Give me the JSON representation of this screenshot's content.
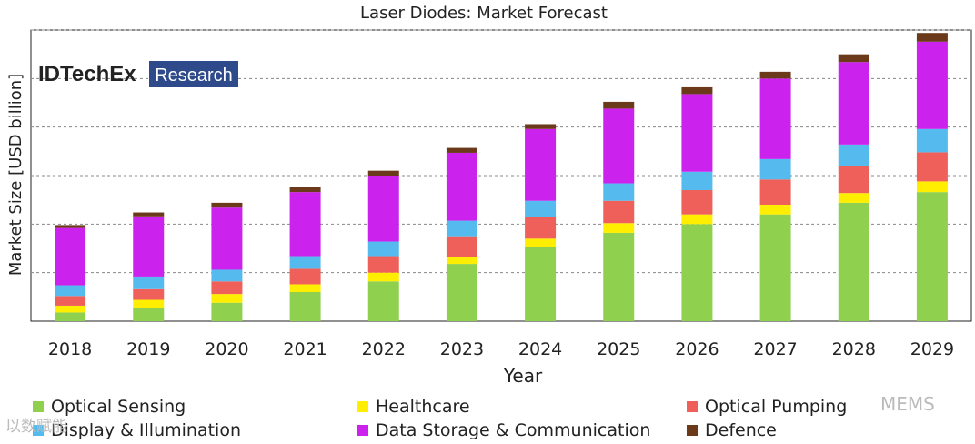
{
  "chart_data": {
    "type": "bar",
    "stacked": true,
    "title": "Laser Diodes: Market Forecast",
    "xlabel": "Year",
    "ylabel": "Market Size [USD billion]",
    "ylim": [
      0,
      6
    ],
    "ytick_count": 6,
    "grid": true,
    "legend_position": "bottom",
    "categories": [
      "2018",
      "2019",
      "2020",
      "2021",
      "2022",
      "2023",
      "2024",
      "2025",
      "2026",
      "2027",
      "2028",
      "2029"
    ],
    "series": [
      {
        "name": "Optical Sensing",
        "color": "#8fd14f",
        "values": [
          0.18,
          0.28,
          0.38,
          0.6,
          0.82,
          1.18,
          1.52,
          1.82,
          2.0,
          2.2,
          2.44,
          2.66
        ]
      },
      {
        "name": "Healthcare",
        "color": "#ffee00",
        "values": [
          0.14,
          0.16,
          0.18,
          0.16,
          0.18,
          0.15,
          0.18,
          0.2,
          0.2,
          0.2,
          0.2,
          0.22
        ]
      },
      {
        "name": "Optical Pumping",
        "color": "#f0605a",
        "values": [
          0.2,
          0.22,
          0.26,
          0.32,
          0.34,
          0.42,
          0.44,
          0.46,
          0.5,
          0.52,
          0.56,
          0.6
        ]
      },
      {
        "name": "Display & Illumination",
        "color": "#55bbee",
        "values": [
          0.22,
          0.26,
          0.24,
          0.26,
          0.3,
          0.32,
          0.34,
          0.36,
          0.38,
          0.42,
          0.44,
          0.48
        ]
      },
      {
        "name": "Data Storage & Communication",
        "color": "#cc22ee",
        "values": [
          1.18,
          1.24,
          1.28,
          1.32,
          1.36,
          1.4,
          1.48,
          1.54,
          1.6,
          1.66,
          1.7,
          1.8
        ]
      },
      {
        "name": "Defence",
        "color": "#6b3a1a",
        "values": [
          0.06,
          0.08,
          0.1,
          0.1,
          0.1,
          0.1,
          0.1,
          0.14,
          0.14,
          0.14,
          0.16,
          0.18
        ]
      }
    ]
  },
  "logo": {
    "brand": "IDTechEx",
    "tag": "Research"
  },
  "watermark": {
    "left": "以数赋能",
    "right": "MEMS"
  }
}
